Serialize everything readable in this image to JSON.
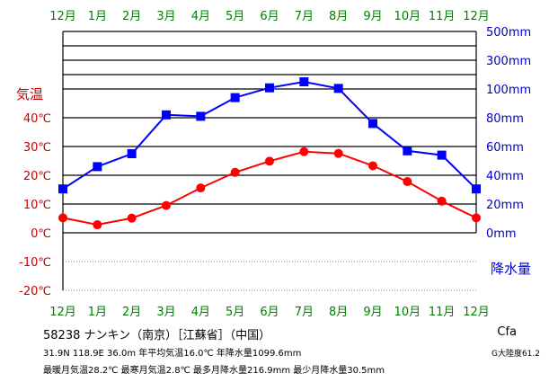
{
  "chart_data": {
    "type": "line",
    "categories": [
      "12月",
      "1月",
      "2月",
      "3月",
      "4月",
      "5月",
      "6月",
      "7月",
      "8月",
      "9月",
      "10月",
      "11月",
      "12月"
    ],
    "series": [
      {
        "name": "気温",
        "axis": "left",
        "color": "#ff0000",
        "marker": "circle",
        "values": [
          5.2,
          2.8,
          5.1,
          9.5,
          15.6,
          21.0,
          24.9,
          28.2,
          27.6,
          23.3,
          17.8,
          11.0,
          5.2
        ]
      },
      {
        "name": "降水量",
        "axis": "right",
        "color": "#0000ff",
        "marker": "square",
        "values": [
          30.5,
          46.0,
          55.0,
          82.0,
          81.0,
          94.0,
          108.0,
          150.0,
          104.0,
          76.0,
          57.0,
          54.0,
          30.5
        ]
      }
    ],
    "left_axis": {
      "label": "気温",
      "ticks": [
        "40℃",
        "30℃",
        "20℃",
        "10℃",
        "0℃",
        "-10℃",
        "-20℃"
      ],
      "range": [
        -20,
        40
      ]
    },
    "right_axis": {
      "label": "降水量",
      "ticks": [
        "500mm",
        "300mm",
        "100mm",
        "80mm",
        "60mm",
        "40mm",
        "20mm",
        "0mm"
      ],
      "range_linear": [
        0,
        100
      ],
      "compressed_upper_ticks": [
        "100mm",
        "200mm",
        "300mm",
        "400mm",
        "500mm"
      ]
    },
    "grid": true
  },
  "info": {
    "station": "58238  ナンキン（南京）［江蘇省］（中国）",
    "line1": "31.9N  118.9E  36.0m  年平均気温16.0℃  年降水量1099.6mm",
    "line2": "最暖月気温28.2℃  最寒月気温2.8℃  最多月降水量216.9mm  最少月降水量30.5mm",
    "koppen": "Cfa",
    "continentality": "G大陸度61.2"
  },
  "colors": {
    "month_labels": "#008000",
    "temperature": "#ff0000",
    "precipitation": "#0000ff",
    "precip_axis": "#0000cc",
    "temp_axis": "#cc0000"
  }
}
